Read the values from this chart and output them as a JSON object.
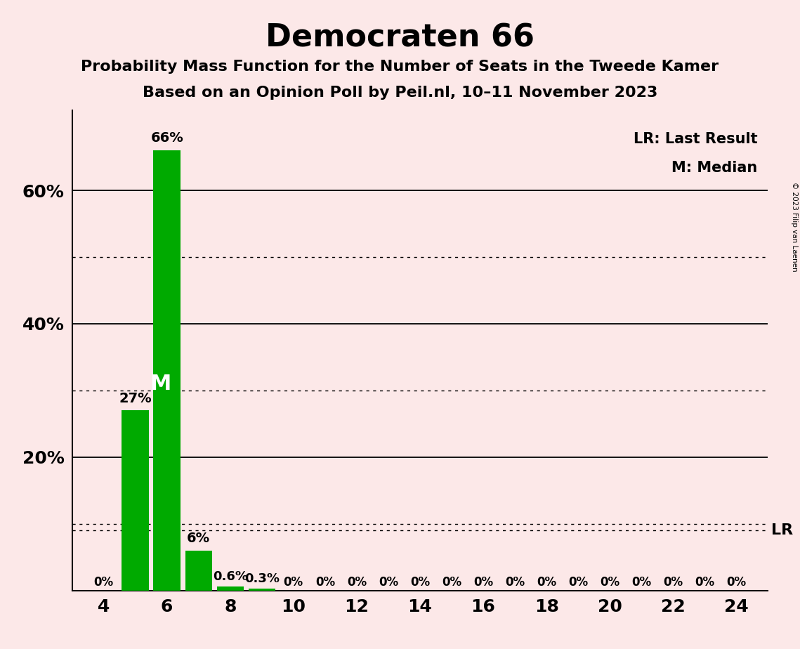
{
  "title": "Democraten 66",
  "subtitle1": "Probability Mass Function for the Number of Seats in the Tweede Kamer",
  "subtitle2": "Based on an Opinion Poll by Peil.nl, 10–11 November 2023",
  "copyright": "© 2023 Filip van Laenen",
  "seats": [
    4,
    5,
    6,
    7,
    8,
    9,
    10,
    11,
    12,
    13,
    14,
    15,
    16,
    17,
    18,
    19,
    20,
    21,
    22,
    23,
    24
  ],
  "probabilities": [
    0.0,
    27.0,
    66.0,
    6.0,
    0.6,
    0.3,
    0.0,
    0.0,
    0.0,
    0.0,
    0.0,
    0.0,
    0.0,
    0.0,
    0.0,
    0.0,
    0.0,
    0.0,
    0.0,
    0.0,
    0.0
  ],
  "bar_color": "#00aa00",
  "background_color": "#fce8e8",
  "median_seat": 6,
  "lr_line_value": 9.0,
  "ylim_max": 72,
  "solid_gridlines": [
    20,
    40,
    60
  ],
  "dotted_gridlines": [
    10,
    30,
    50
  ],
  "lr_dotted_line": 9.0,
  "ytick_positions": [
    20,
    40,
    60
  ],
  "ytick_labels": [
    "20%",
    "40%",
    "60%"
  ],
  "xtick_positions": [
    4,
    6,
    8,
    10,
    12,
    14,
    16,
    18,
    20,
    22,
    24
  ],
  "bar_labels": {
    "4": "0%",
    "5": "27%",
    "6": "66%",
    "7": "6%",
    "8": "0.6%",
    "9": "0.3%",
    "10": "0%",
    "11": "0%",
    "12": "0%",
    "13": "0%",
    "14": "0%",
    "15": "0%",
    "16": "0%",
    "17": "0%",
    "18": "0%",
    "19": "0%",
    "20": "0%",
    "21": "0%",
    "22": "0%",
    "23": "0%",
    "24": "0%"
  }
}
